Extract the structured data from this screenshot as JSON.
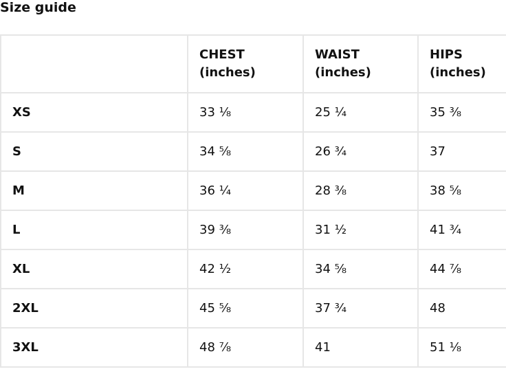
{
  "title": "Size guide",
  "headers": [
    "",
    "CHEST\n(inches)",
    "WAIST\n(inches)",
    "HIPS\n(inches)"
  ],
  "header_lines": [
    [
      "",
      ""
    ],
    [
      "CHEST",
      "(inches)"
    ],
    [
      "WAIST",
      "(inches)"
    ],
    [
      "HIPS",
      "(inches)"
    ]
  ],
  "rows": [
    [
      "XS",
      "33 ⅛",
      "25 ¼",
      "35 ⅜"
    ],
    [
      "S",
      "34 ⅝",
      "26 ¾",
      "37"
    ],
    [
      "M",
      "36 ¼",
      "28 ⅜",
      "38 ⅝"
    ],
    [
      "L",
      "39 ⅜",
      "31 ½",
      "41 ¾"
    ],
    [
      "XL",
      "42 ½",
      "34 ⅝",
      "44 ⅞"
    ],
    [
      "2XL",
      "45 ⅝",
      "37 ¾",
      "48"
    ],
    [
      "3XL",
      "48 ⅞",
      "41",
      "51 ⅛"
    ]
  ]
}
